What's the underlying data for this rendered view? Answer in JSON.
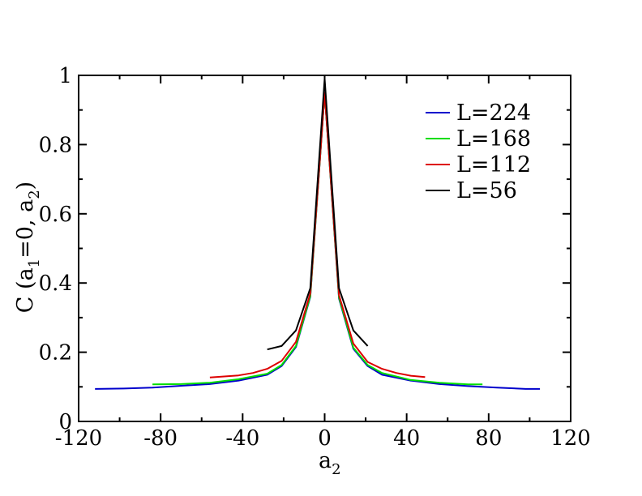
{
  "chart_data": {
    "type": "line",
    "title": "",
    "xlabel": "a",
    "xlabel_sub": "2",
    "ylabel_parts": [
      "C (a",
      "1",
      "=0, a",
      "2",
      ")"
    ],
    "xlim": [
      -120,
      120
    ],
    "ylim": [
      0,
      1
    ],
    "xticks": [
      -120,
      -80,
      -40,
      0,
      40,
      80,
      120
    ],
    "xtick_labels": [
      "-120",
      "-80",
      "-40",
      "0",
      "40",
      "80",
      "120"
    ],
    "yticks": [
      0,
      0.2,
      0.4,
      0.6,
      0.8,
      1
    ],
    "ytick_labels": [
      "0",
      "0.2",
      "0.4",
      "0.6",
      "0.8",
      "1"
    ],
    "grid": false,
    "legend_position": "top-right",
    "series": [
      {
        "name": "L=224",
        "color": "#0000cc",
        "x": [
          -112,
          -98,
          -84,
          -70,
          -56,
          -42,
          -28,
          -21,
          -14,
          -7,
          0,
          7,
          14,
          21,
          28,
          42,
          56,
          70,
          84,
          98,
          105
        ],
        "y": [
          0.094,
          0.095,
          0.098,
          0.103,
          0.108,
          0.118,
          0.135,
          0.16,
          0.215,
          0.36,
          0.95,
          0.355,
          0.21,
          0.16,
          0.135,
          0.118,
          0.108,
          0.102,
          0.098,
          0.094,
          0.094
        ]
      },
      {
        "name": "L=168",
        "color": "#00dd00",
        "x": [
          -84,
          -70,
          -56,
          -42,
          -28,
          -21,
          -14,
          -7,
          0,
          7,
          14,
          21,
          28,
          42,
          56,
          70,
          77
        ],
        "y": [
          0.107,
          0.108,
          0.112,
          0.122,
          0.138,
          0.163,
          0.218,
          0.362,
          0.95,
          0.358,
          0.213,
          0.163,
          0.14,
          0.12,
          0.112,
          0.107,
          0.107
        ]
      },
      {
        "name": "L=112",
        "color": "#dd0000",
        "x": [
          -56,
          -42,
          -35,
          -28,
          -21,
          -14,
          -7,
          0,
          7,
          14,
          21,
          28,
          35,
          42,
          49
        ],
        "y": [
          0.127,
          0.133,
          0.14,
          0.152,
          0.175,
          0.23,
          0.37,
          0.95,
          0.365,
          0.225,
          0.172,
          0.152,
          0.14,
          0.132,
          0.128
        ]
      },
      {
        "name": "L=56",
        "color": "#000000",
        "x": [
          -28,
          -21,
          -14,
          -7,
          0,
          7,
          14,
          21
        ],
        "y": [
          0.208,
          0.218,
          0.263,
          0.385,
          0.99,
          0.385,
          0.263,
          0.218
        ]
      }
    ]
  }
}
